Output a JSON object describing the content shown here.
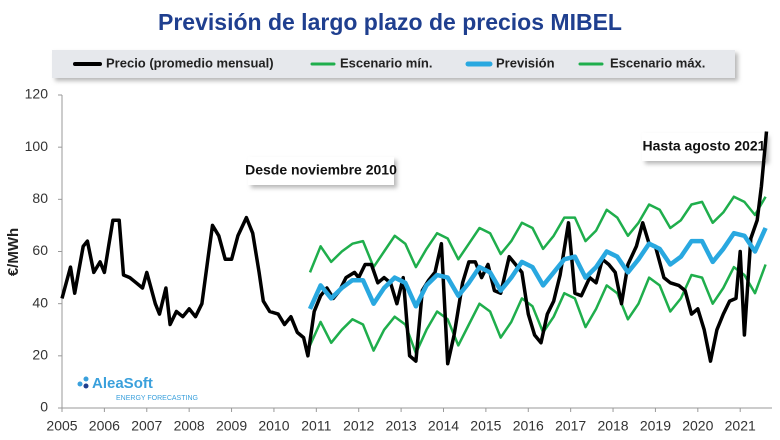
{
  "chart_data": {
    "type": "line",
    "title": "Previsión de largo plazo de precios MIBEL",
    "y_label": "€/MWh",
    "xlim": [
      2005,
      2021.75
    ],
    "xticks": [
      2005,
      2006,
      2007,
      2008,
      2009,
      2010,
      2011,
      2012,
      2013,
      2014,
      2015,
      2016,
      2017,
      2018,
      2019,
      2020,
      2021
    ],
    "ylim": [
      0,
      120
    ],
    "yticks": [
      0,
      20,
      40,
      60,
      80,
      100,
      120
    ],
    "grid": false,
    "annotations": [
      "Desde noviembre 2010",
      "Hasta agosto 2021"
    ],
    "logo": {
      "name": "AleaSoft",
      "tagline": "ENERGY FORECASTING"
    },
    "series": [
      {
        "name": "Precio (promedio mensual)",
        "color": "#000000",
        "x": [
          2005.0,
          2005.2,
          2005.3,
          2005.5,
          2005.6,
          2005.75,
          2005.9,
          2006.0,
          2006.1,
          2006.2,
          2006.35,
          2006.45,
          2006.6,
          2006.75,
          2006.9,
          2007.0,
          2007.2,
          2007.3,
          2007.45,
          2007.55,
          2007.7,
          2007.85,
          2008.0,
          2008.15,
          2008.3,
          2008.45,
          2008.55,
          2008.7,
          2008.85,
          2009.0,
          2009.15,
          2009.35,
          2009.5,
          2009.65,
          2009.75,
          2009.9,
          2010.1,
          2010.25,
          2010.4,
          2010.55,
          2010.7,
          2010.8,
          2010.95,
          2011.1,
          2011.25,
          2011.4,
          2011.55,
          2011.7,
          2011.9,
          2012.0,
          2012.15,
          2012.3,
          2012.45,
          2012.6,
          2012.75,
          2012.9,
          2013.05,
          2013.2,
          2013.35,
          2013.5,
          2013.65,
          2013.8,
          2013.95,
          2014.1,
          2014.25,
          2014.45,
          2014.6,
          2014.75,
          2014.9,
          2015.05,
          2015.2,
          2015.35,
          2015.55,
          2015.7,
          2015.85,
          2016.0,
          2016.15,
          2016.3,
          2016.45,
          2016.6,
          2016.75,
          2016.95,
          2017.1,
          2017.25,
          2017.45,
          2017.6,
          2017.75,
          2017.9,
          2018.05,
          2018.2,
          2018.35,
          2018.55,
          2018.7,
          2018.85,
          2019.0,
          2019.2,
          2019.35,
          2019.55,
          2019.7,
          2019.85,
          2020.0,
          2020.15,
          2020.3,
          2020.45,
          2020.6,
          2020.75,
          2020.9,
          2021.0,
          2021.1,
          2021.25,
          2021.4,
          2021.5,
          2021.62
        ],
        "values": [
          42,
          54,
          44,
          62,
          64,
          52,
          56,
          52,
          62,
          72,
          72,
          51,
          50,
          48,
          46,
          52,
          40,
          36,
          46,
          32,
          37,
          35,
          38,
          35,
          40,
          58,
          70,
          66,
          57,
          57,
          66,
          73,
          67,
          52,
          41,
          37,
          36,
          32,
          35,
          29,
          27,
          20,
          37,
          43,
          46,
          42,
          45,
          50,
          52,
          50,
          55,
          55,
          48,
          50,
          48,
          40,
          50,
          20,
          18,
          45,
          49,
          52,
          63,
          17,
          28,
          48,
          56,
          56,
          50,
          55,
          45,
          44,
          58,
          55,
          52,
          36,
          28,
          25,
          36,
          41,
          51,
          71,
          44,
          43,
          50,
          48,
          57,
          55,
          52,
          40,
          55,
          62,
          71,
          63,
          62,
          50,
          48,
          47,
          45,
          36,
          38,
          30,
          18,
          30,
          36,
          41,
          42,
          60,
          28,
          65,
          72,
          85,
          106
        ]
      },
      {
        "name": "Escenario mín.",
        "color": "#1fae4c",
        "x": [
          2010.85,
          2011.1,
          2011.35,
          2011.6,
          2011.85,
          2012.1,
          2012.35,
          2012.6,
          2012.85,
          2013.1,
          2013.35,
          2013.6,
          2013.85,
          2014.1,
          2014.35,
          2014.6,
          2014.85,
          2015.1,
          2015.35,
          2015.6,
          2015.85,
          2016.1,
          2016.35,
          2016.6,
          2016.85,
          2017.1,
          2017.35,
          2017.6,
          2017.85,
          2018.1,
          2018.35,
          2018.6,
          2018.85,
          2019.1,
          2019.35,
          2019.6,
          2019.85,
          2020.1,
          2020.35,
          2020.6,
          2020.85,
          2021.1,
          2021.35,
          2021.6
        ],
        "values": [
          24,
          33,
          25,
          30,
          34,
          32,
          22,
          30,
          35,
          32,
          21,
          30,
          37,
          34,
          24,
          32,
          40,
          37,
          27,
          33,
          42,
          39,
          29,
          35,
          44,
          42,
          31,
          38,
          47,
          44,
          34,
          40,
          50,
          47,
          37,
          42,
          51,
          50,
          40,
          46,
          54,
          51,
          44,
          55
        ]
      },
      {
        "name": "Previsión",
        "color": "#29a8e0",
        "x": [
          2010.85,
          2011.1,
          2011.35,
          2011.6,
          2011.85,
          2012.1,
          2012.35,
          2012.6,
          2012.85,
          2013.1,
          2013.35,
          2013.6,
          2013.85,
          2014.1,
          2014.35,
          2014.6,
          2014.85,
          2015.1,
          2015.35,
          2015.6,
          2015.85,
          2016.1,
          2016.35,
          2016.6,
          2016.85,
          2017.1,
          2017.35,
          2017.6,
          2017.85,
          2018.1,
          2018.35,
          2018.6,
          2018.85,
          2019.1,
          2019.35,
          2019.6,
          2019.85,
          2020.1,
          2020.35,
          2020.6,
          2020.85,
          2021.1,
          2021.35,
          2021.6
        ],
        "values": [
          38,
          47,
          42,
          46,
          49,
          49,
          40,
          46,
          50,
          48,
          39,
          47,
          51,
          50,
          43,
          48,
          54,
          52,
          45,
          50,
          56,
          54,
          47,
          52,
          57,
          58,
          50,
          54,
          60,
          58,
          52,
          57,
          63,
          61,
          55,
          58,
          64,
          64,
          56,
          61,
          67,
          66,
          60,
          69
        ]
      },
      {
        "name": "Escenario máx.",
        "color": "#1fae4c",
        "x": [
          2010.85,
          2011.1,
          2011.35,
          2011.6,
          2011.85,
          2012.1,
          2012.35,
          2012.6,
          2012.85,
          2013.1,
          2013.35,
          2013.6,
          2013.85,
          2014.1,
          2014.35,
          2014.6,
          2014.85,
          2015.1,
          2015.35,
          2015.6,
          2015.85,
          2016.1,
          2016.35,
          2016.6,
          2016.85,
          2017.1,
          2017.35,
          2017.6,
          2017.85,
          2018.1,
          2018.35,
          2018.6,
          2018.85,
          2019.1,
          2019.35,
          2019.6,
          2019.85,
          2020.1,
          2020.35,
          2020.6,
          2020.85,
          2021.1,
          2021.35,
          2021.6
        ],
        "values": [
          52,
          62,
          56,
          60,
          63,
          64,
          54,
          60,
          66,
          63,
          54,
          61,
          67,
          65,
          57,
          63,
          69,
          67,
          59,
          64,
          71,
          69,
          61,
          66,
          73,
          73,
          64,
          68,
          76,
          73,
          66,
          71,
          78,
          76,
          69,
          72,
          78,
          79,
          71,
          75,
          81,
          79,
          74,
          81
        ]
      }
    ]
  }
}
